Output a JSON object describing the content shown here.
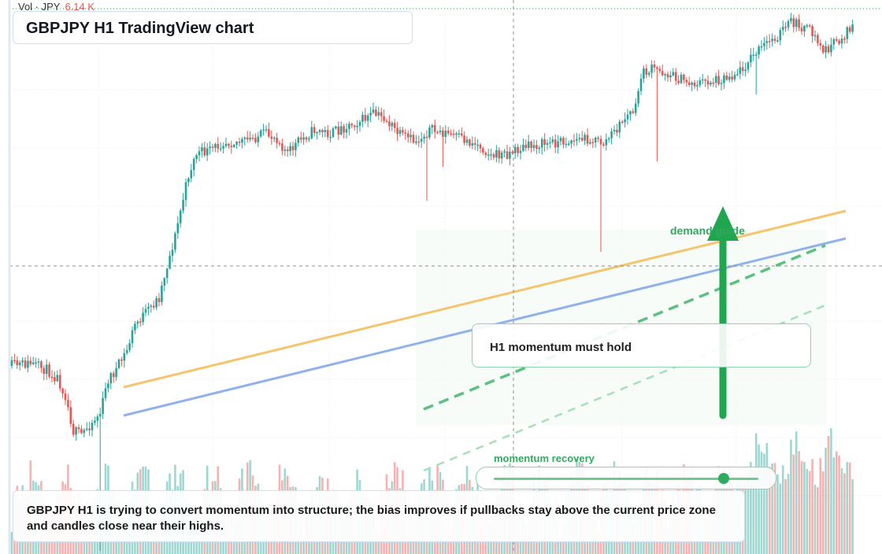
{
  "volume": {
    "label": "Vol · JPY",
    "value": "6.14 K"
  },
  "title": "GBPJPY H1 TradingView chart",
  "annotations": {
    "demand_label": "demand guide",
    "callout": "H1 momentum must hold",
    "momentum_label": "momentum recovery",
    "note": "GBPJPY H1 is trying to convert momentum into structure; the bias improves if pullbacks stay above the current price zone and candles close near their highs."
  },
  "slider": {
    "value": 0.87
  },
  "colors": {
    "up": "#26a69a",
    "down": "#ef5350",
    "trend_orange": "#f5c56e",
    "trend_blue": "#8fb2ea",
    "accent_green": "#1fa64f",
    "grid": "#e9eef4"
  }
}
